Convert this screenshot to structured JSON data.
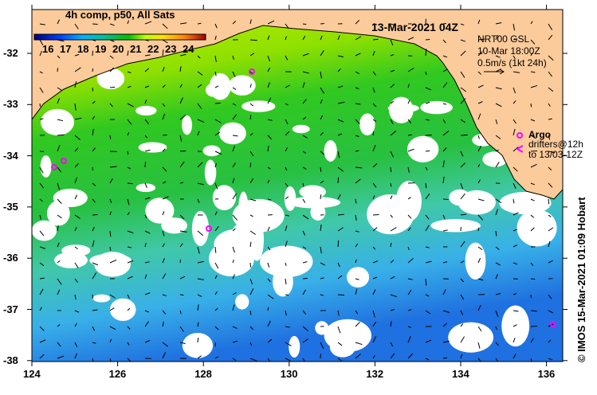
{
  "map": {
    "title": "13-Mar-2021 04Z",
    "legend": {
      "title": "4h comp, p50, All Sats",
      "ticks": [
        "16",
        "17",
        "18",
        "19",
        "20",
        "21",
        "22",
        "23",
        "24"
      ]
    },
    "current_info": {
      "line1": "NRT00 GSL",
      "line2": "10-Mar 18:00Z",
      "line3": "0.5m/s (1kt 24h)"
    },
    "argo_label": "Argo",
    "drifters_label": "drifters@12h",
    "drifters_range": "to 13/03-12Z",
    "credit": "© IMOS 15-Mar-2021 01:09 Hobart",
    "x_ticks": [
      "124",
      "126",
      "128",
      "130",
      "132",
      "134",
      "136"
    ],
    "y_ticks": [
      "-32",
      "-33",
      "-34",
      "-35",
      "-36",
      "-37",
      "-38"
    ],
    "colors": {
      "land": "#fccb9b",
      "argo": "#ff00ff"
    }
  }
}
